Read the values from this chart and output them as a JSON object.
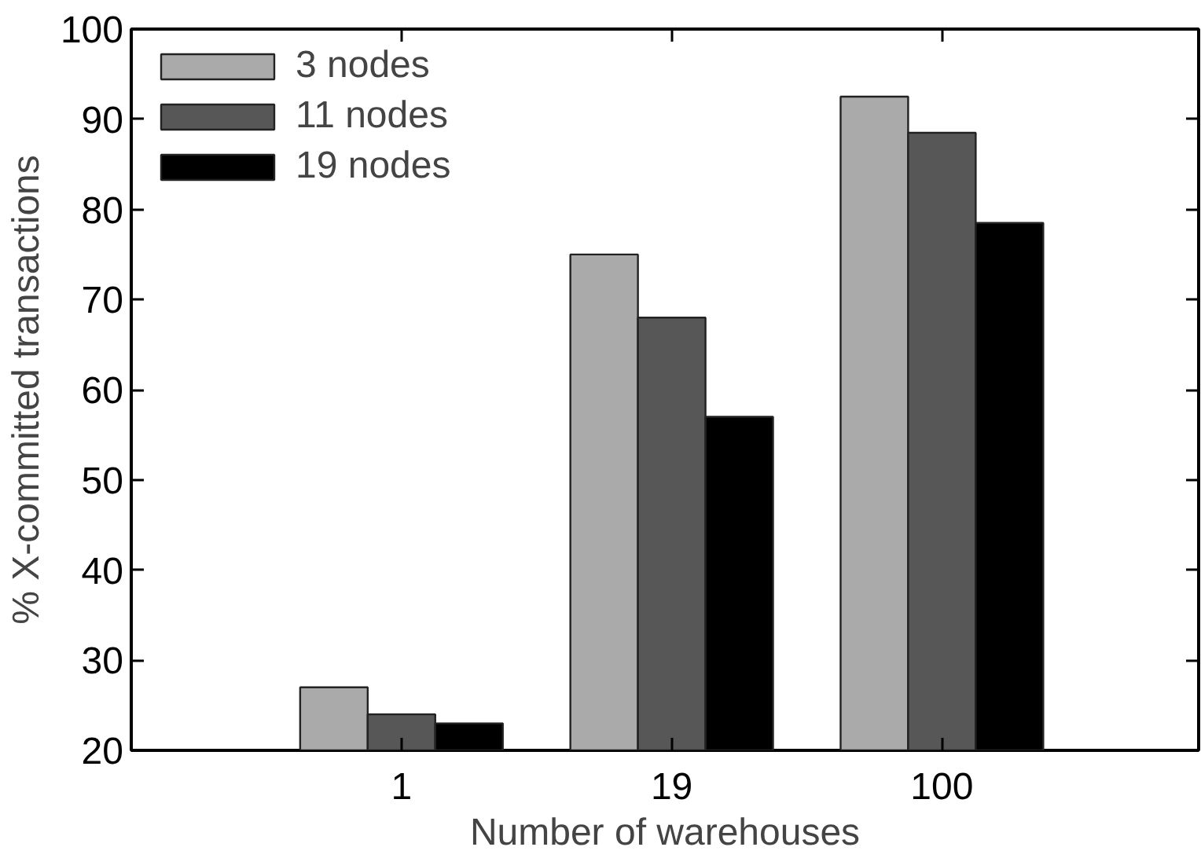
{
  "chart_data": {
    "type": "bar",
    "xlabel": "Number of warehouses",
    "ylabel": "% X-committed transactions",
    "categories": [
      "1",
      "19",
      "100"
    ],
    "series": [
      {
        "name": "3 nodes",
        "color": "#aaaaaa",
        "values": [
          27,
          75,
          92.5
        ]
      },
      {
        "name": "11 nodes",
        "color": "#575757",
        "values": [
          24,
          68,
          88.5
        ]
      },
      {
        "name": "19 nodes",
        "color": "#000000",
        "values": [
          23,
          57,
          78.5
        ]
      }
    ],
    "ylim": [
      20,
      100
    ],
    "yticks": [
      20,
      30,
      40,
      50,
      60,
      70,
      80,
      90,
      100
    ],
    "legend": "top left",
    "grid": false
  }
}
